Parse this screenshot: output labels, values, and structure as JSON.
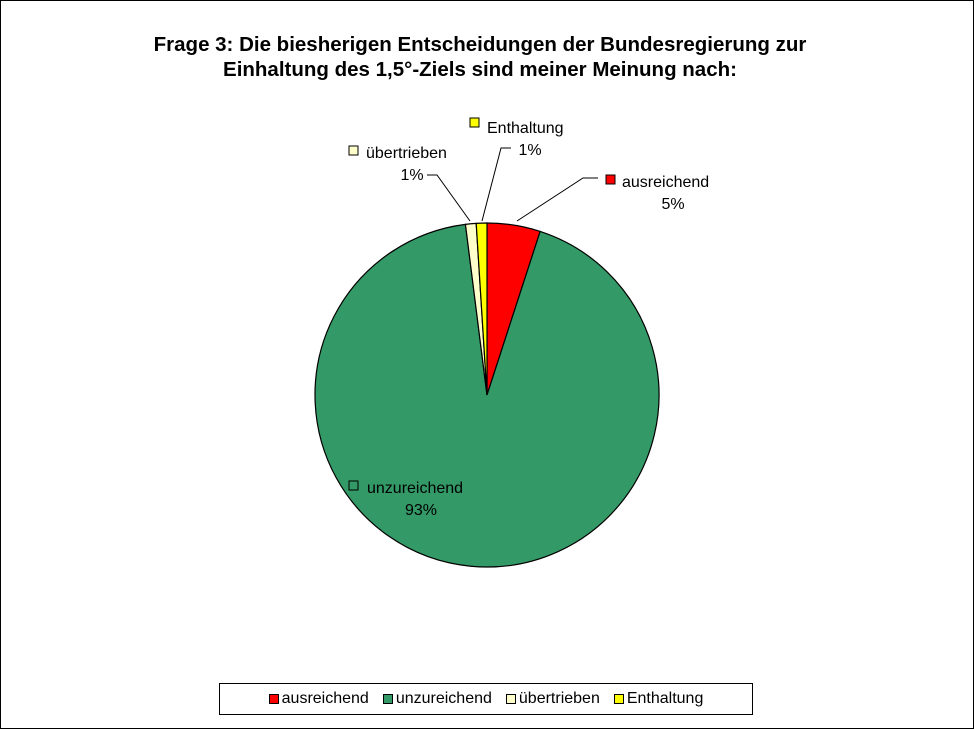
{
  "chart_data": {
    "type": "pie",
    "title_lines": [
      "Frage 3: Die biesherigen Entscheidungen der Bundesregierung zur",
      "Einhaltung des 1,5°-Ziels sind meiner Meinung nach:"
    ],
    "categories": [
      "ausreichend",
      "unzureichend",
      "übertrieben",
      "Enthaltung"
    ],
    "values": [
      5,
      93,
      1,
      1
    ],
    "value_labels": [
      "5%",
      "93%",
      "1%",
      "1%"
    ],
    "colors": [
      "#ff0000",
      "#339966",
      "#ffffcc",
      "#ffff00"
    ],
    "start_angle_deg": 0,
    "direction": "clockwise",
    "legend_position": "bottom"
  }
}
